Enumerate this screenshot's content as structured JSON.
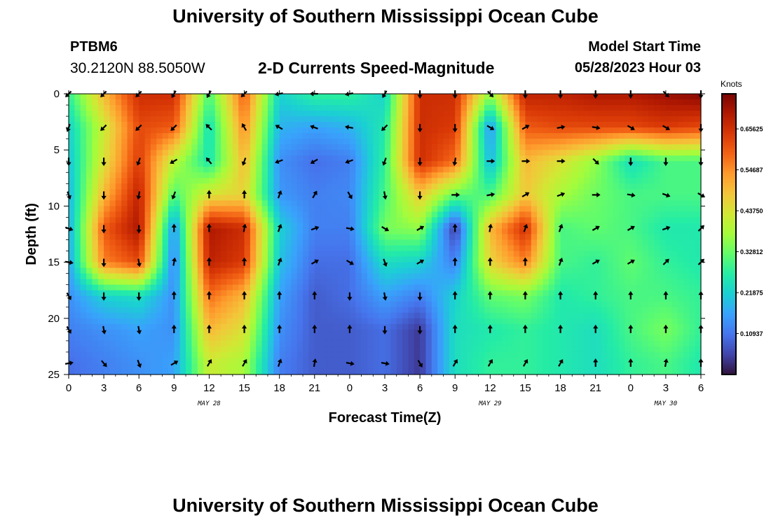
{
  "header": {
    "title": "University of Southern Mississippi Ocean Cube",
    "station": "PTBM6",
    "coords": "30.2120N  88.5050W",
    "subtitle": "2-D Currents Speed-Magnitude",
    "model_start_label": "Model Start Time",
    "model_start_value": "05/28/2023 Hour 03"
  },
  "footer": {
    "title": "University of Southern Mississippi Ocean Cube"
  },
  "chart_data": {
    "type": "heatmap",
    "title": "2-D Currents Speed-Magnitude",
    "xlabel": "Forecast Time(Z)",
    "ylabel": "Depth (ft)",
    "x_ticks": [
      "0",
      "3",
      "6",
      "9",
      "12",
      "15",
      "18",
      "21",
      "0",
      "3",
      "6",
      "9",
      "12",
      "15",
      "18",
      "21",
      "0",
      "3",
      "6"
    ],
    "x_range": [
      0,
      54
    ],
    "y_ticks": [
      0,
      5,
      10,
      15,
      20,
      25
    ],
    "y_range": [
      0,
      25
    ],
    "date_labels": [
      {
        "x": 12,
        "label": "MAY 28"
      },
      {
        "x": 36,
        "label": "MAY 29"
      },
      {
        "x": 51,
        "label": "MAY 30"
      }
    ],
    "colorbar": {
      "title": "Knots",
      "tick_values": [
        0.10937,
        0.21875,
        0.32812,
        0.4375,
        0.54687,
        0.65625
      ],
      "tick_labels": [
        "0.10937",
        "0.21875",
        "0.32812",
        "0.43750",
        "0.54687",
        "0.65625"
      ],
      "range": [
        0,
        0.75
      ],
      "colors": [
        "#30123b",
        "#4145ab",
        "#4675ed",
        "#39a2fc",
        "#1bcfd4",
        "#24eca6",
        "#61fc6c",
        "#a4fc3b",
        "#d1e834",
        "#f3c63a",
        "#fe9b2d",
        "#f36315",
        "#d93806",
        "#b11901",
        "#7a0403"
      ]
    },
    "speed_grid": {
      "x": [
        0,
        3,
        6,
        9,
        12,
        15,
        18,
        21,
        24,
        27,
        30,
        33,
        36,
        39,
        42,
        45,
        48,
        51,
        54
      ],
      "depth": [
        0,
        3,
        6,
        9,
        12,
        15,
        18,
        21,
        24
      ],
      "values": [
        [
          0.28,
          0.5,
          0.66,
          0.66,
          0.3,
          0.6,
          0.22,
          0.28,
          0.28,
          0.22,
          0.66,
          0.66,
          0.36,
          0.68,
          0.68,
          0.7,
          0.7,
          0.72,
          0.74
        ],
        [
          0.22,
          0.42,
          0.62,
          0.6,
          0.24,
          0.55,
          0.18,
          0.16,
          0.18,
          0.26,
          0.66,
          0.64,
          0.14,
          0.6,
          0.62,
          0.62,
          0.62,
          0.64,
          0.62
        ],
        [
          0.2,
          0.44,
          0.64,
          0.4,
          0.25,
          0.5,
          0.14,
          0.1,
          0.12,
          0.28,
          0.66,
          0.58,
          0.18,
          0.5,
          0.44,
          0.36,
          0.24,
          0.3,
          0.3
        ],
        [
          0.18,
          0.5,
          0.68,
          0.3,
          0.44,
          0.46,
          0.15,
          0.12,
          0.13,
          0.3,
          0.48,
          0.32,
          0.3,
          0.48,
          0.38,
          0.33,
          0.3,
          0.3,
          0.3
        ],
        [
          0.17,
          0.6,
          0.7,
          0.14,
          0.7,
          0.66,
          0.22,
          0.12,
          0.12,
          0.34,
          0.36,
          0.04,
          0.5,
          0.66,
          0.3,
          0.32,
          0.3,
          0.26,
          0.26
        ],
        [
          0.16,
          0.56,
          0.62,
          0.12,
          0.68,
          0.64,
          0.2,
          0.1,
          0.1,
          0.24,
          0.22,
          0.12,
          0.46,
          0.56,
          0.3,
          0.28,
          0.32,
          0.28,
          0.26
        ],
        [
          0.14,
          0.22,
          0.24,
          0.14,
          0.58,
          0.5,
          0.16,
          0.08,
          0.1,
          0.16,
          0.12,
          0.22,
          0.32,
          0.34,
          0.26,
          0.28,
          0.3,
          0.3,
          0.28
        ],
        [
          0.12,
          0.14,
          0.16,
          0.14,
          0.5,
          0.44,
          0.14,
          0.08,
          0.08,
          0.1,
          0.04,
          0.24,
          0.26,
          0.28,
          0.26,
          0.24,
          0.3,
          0.34,
          0.28
        ],
        [
          0.1,
          0.12,
          0.14,
          0.16,
          0.42,
          0.38,
          0.12,
          0.08,
          0.08,
          0.1,
          0.04,
          0.24,
          0.28,
          0.28,
          0.26,
          0.24,
          0.28,
          0.3,
          0.26
        ]
      ]
    },
    "vectors": {
      "x": [
        0,
        3,
        6,
        9,
        12,
        15,
        18,
        21,
        24,
        27,
        30,
        33,
        36,
        39,
        42,
        45,
        48,
        51,
        54
      ],
      "depth": [
        0,
        3,
        6,
        9,
        12,
        15,
        18,
        21,
        24
      ],
      "direction_deg": [
        [
          225,
          225,
          225,
          210,
          210,
          225,
          260,
          270,
          260,
          210,
          180,
          180,
          135,
          180,
          180,
          180,
          180,
          135,
          180
        ],
        [
          200,
          225,
          225,
          225,
          315,
          330,
          300,
          290,
          280,
          225,
          180,
          180,
          120,
          60,
          80,
          100,
          120,
          120,
          180
        ],
        [
          180,
          180,
          200,
          240,
          320,
          200,
          250,
          240,
          250,
          200,
          180,
          190,
          90,
          90,
          90,
          135,
          180,
          180,
          180
        ],
        [
          160,
          180,
          190,
          200,
          0,
          0,
          20,
          30,
          150,
          170,
          180,
          90,
          80,
          60,
          70,
          90,
          100,
          110,
          120
        ],
        [
          110,
          180,
          180,
          0,
          0,
          10,
          20,
          70,
          100,
          120,
          60,
          0,
          10,
          20,
          20,
          60,
          60,
          70,
          45
        ],
        [
          100,
          180,
          170,
          10,
          0,
          0,
          20,
          60,
          120,
          160,
          60,
          0,
          0,
          0,
          20,
          60,
          60,
          45,
          45
        ],
        [
          150,
          180,
          180,
          0,
          0,
          0,
          0,
          0,
          180,
          170,
          180,
          0,
          0,
          0,
          0,
          0,
          0,
          0,
          0
        ],
        [
          150,
          170,
          170,
          0,
          0,
          0,
          0,
          0,
          0,
          180,
          180,
          0,
          0,
          0,
          0,
          0,
          0,
          0,
          0
        ],
        [
          80,
          140,
          160,
          60,
          30,
          30,
          20,
          10,
          100,
          100,
          150,
          30,
          30,
          30,
          30,
          0,
          0,
          10,
          0
        ]
      ]
    }
  }
}
